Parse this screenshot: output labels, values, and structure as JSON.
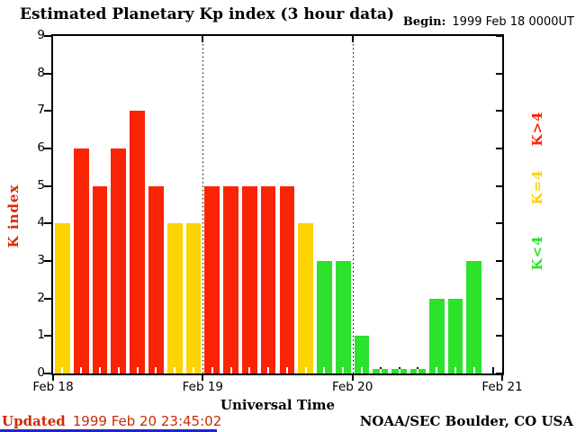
{
  "title": "Estimated Planetary Kp index (3 hour data)",
  "begin": {
    "label": "Begin:",
    "value": "1999 Feb 18 0000UT"
  },
  "chart_data": {
    "type": "bar",
    "title": "Estimated Planetary Kp index (3 hour data)",
    "xlabel": "Universal Time",
    "ylabel": "K index",
    "ylim": [
      0,
      9
    ],
    "yticks": [
      0,
      1,
      2,
      3,
      4,
      5,
      6,
      7,
      8,
      9
    ],
    "day_labels": [
      "Feb 18",
      "Feb 19",
      "Feb 20",
      "Feb 21"
    ],
    "slots_per_day": 8,
    "hours_per_slot": 3,
    "series": [
      {
        "day": "Feb 18",
        "values": [
          4,
          6,
          5,
          6,
          7,
          5,
          4,
          4
        ]
      },
      {
        "day": "Feb 19",
        "values": [
          5,
          5,
          5,
          5,
          5,
          4,
          3,
          3
        ]
      },
      {
        "day": "Feb 20",
        "values": [
          1,
          0,
          0,
          0,
          2,
          2,
          3,
          null
        ]
      }
    ],
    "color_rule": {
      "above_4": "#f82405",
      "equal_4": "#fcd303",
      "below_4": "#2ce22c"
    },
    "grid": "vertical dotted lines at day boundaries",
    "legend_position": "right-rotated"
  },
  "legend": {
    "items": [
      {
        "label": "K>4",
        "color": "#f82405"
      },
      {
        "label": "K=4",
        "color": "#fcd303"
      },
      {
        "label": "K<4",
        "color": "#2ce22c"
      }
    ]
  },
  "footer": {
    "updated_label": "Updated",
    "updated_value": "1999 Feb 20 23:45:02",
    "credit": "NOAA/SEC Boulder, CO USA"
  },
  "colors": {
    "bar_red": "#f82405",
    "bar_yellow": "#fcd303",
    "bar_green": "#2ce22c",
    "axis_label_red": "#d92b04",
    "updated_text_red": "#cc2a04",
    "bottom_line_blue": "#2323cc",
    "axis_black": "#000000"
  }
}
